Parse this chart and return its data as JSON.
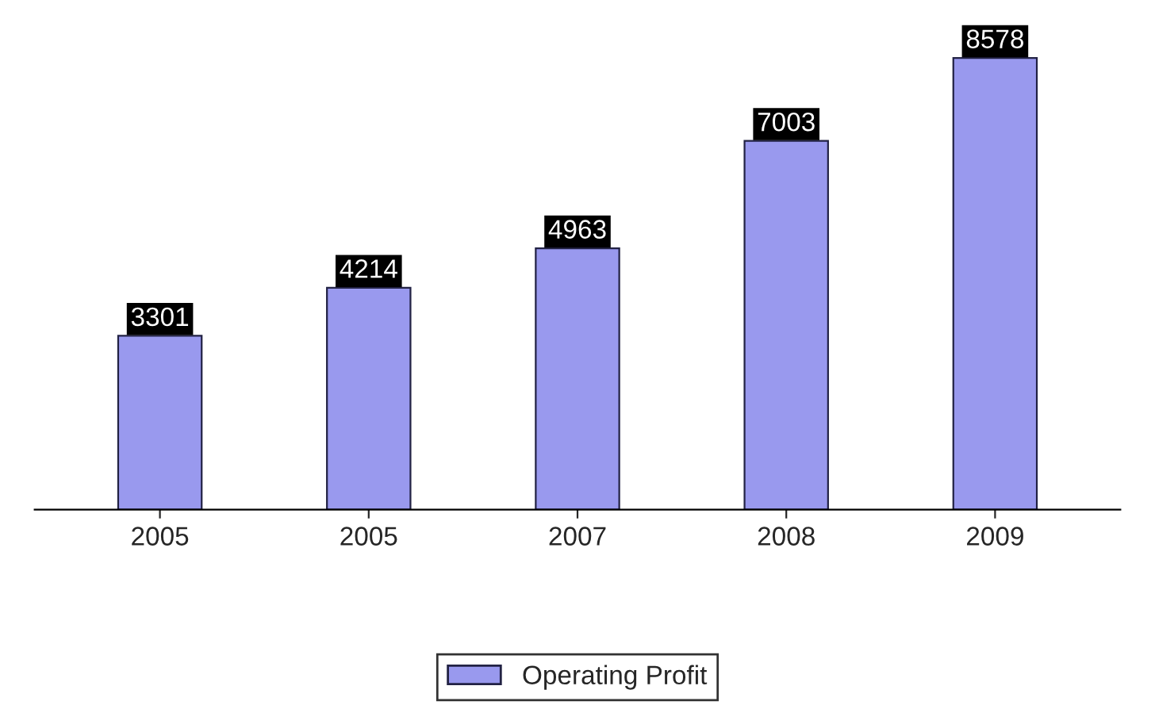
{
  "chart_data": {
    "type": "bar",
    "categories": [
      "2005",
      "2005",
      "2007",
      "2008",
      "2009"
    ],
    "series": [
      {
        "name": "Operating Profit",
        "color": "#9999ee",
        "values": [
          3301,
          4214,
          4963,
          7003,
          8578
        ]
      }
    ],
    "data_labels": true,
    "legend": "bottom",
    "grid": false
  }
}
